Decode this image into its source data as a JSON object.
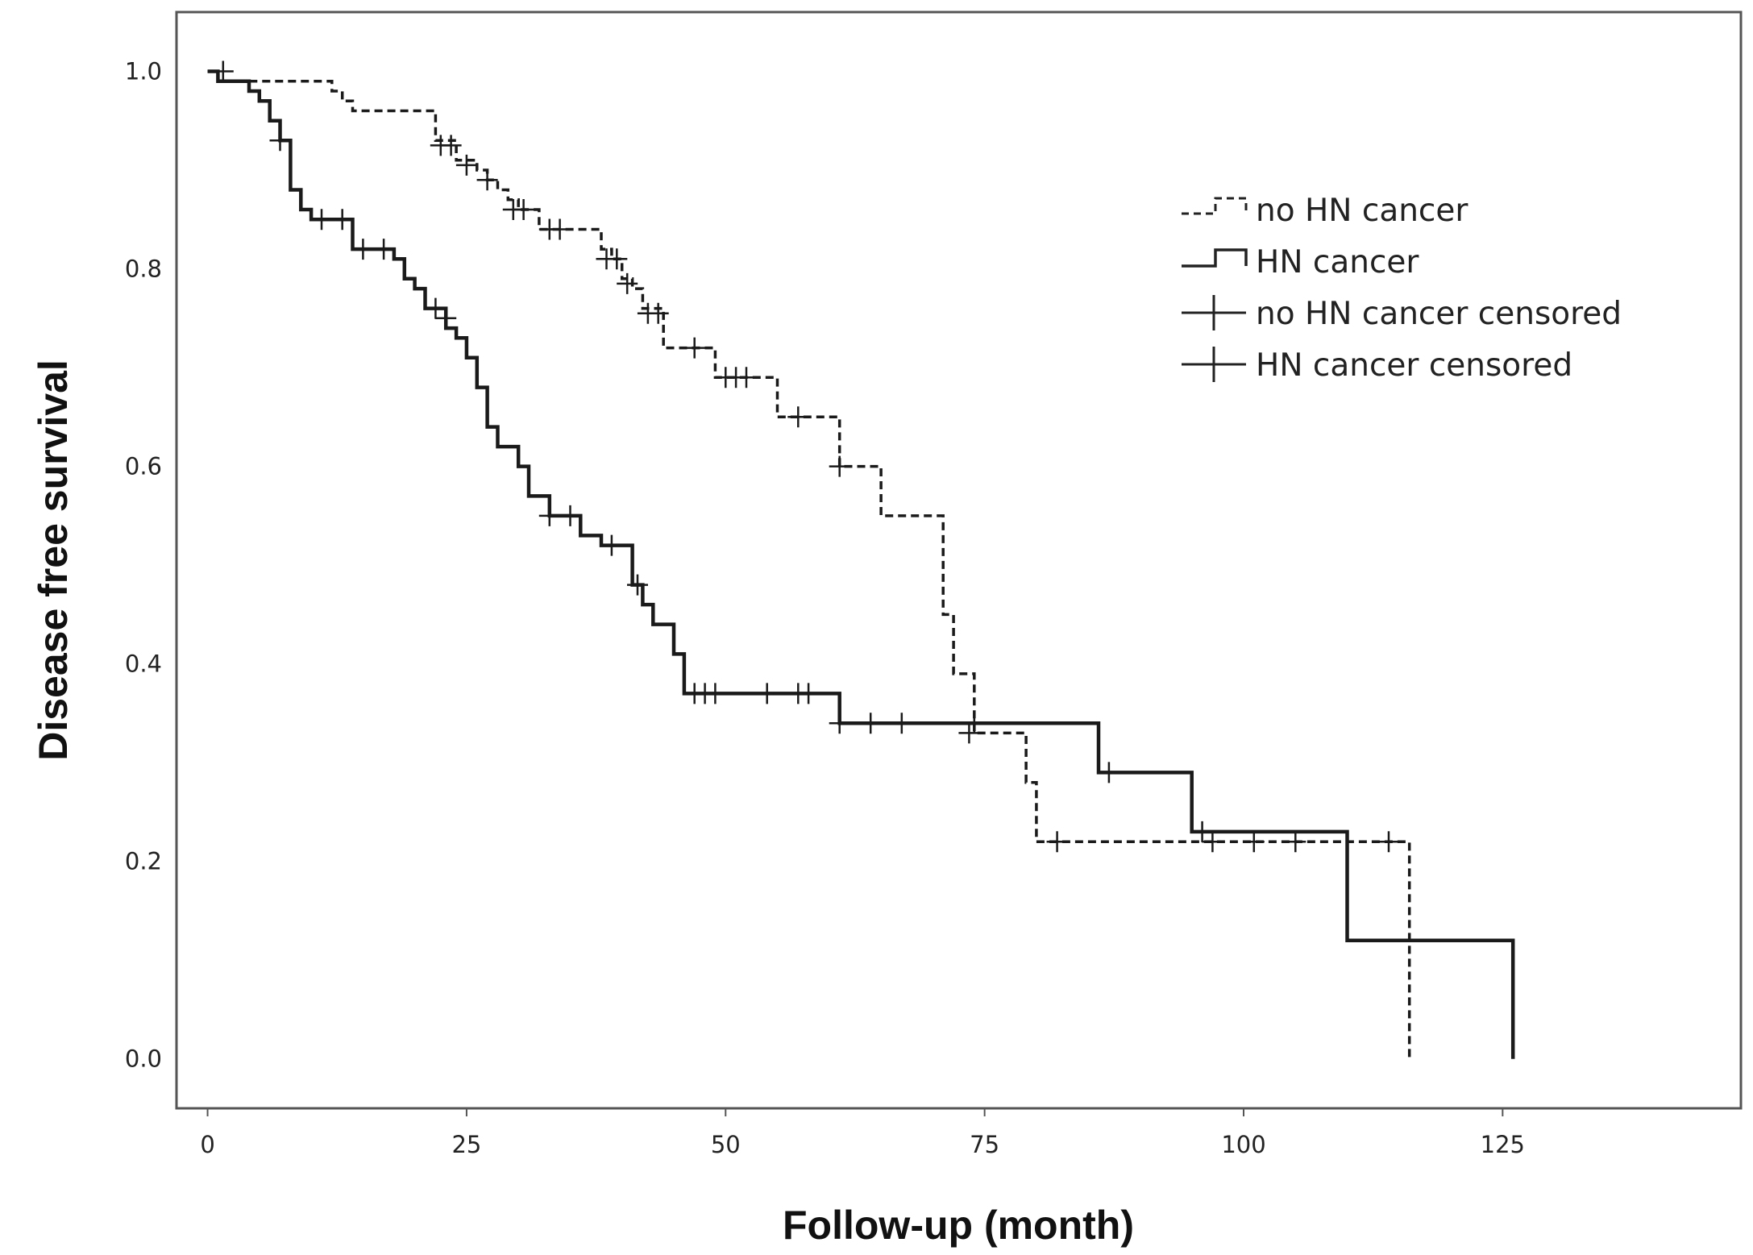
{
  "chart_data": {
    "type": "line",
    "subtype": "kaplan-meier",
    "title": "",
    "xlabel": "Follow-up (month)",
    "ylabel": "Disease free survival",
    "xlim": [
      -3,
      148
    ],
    "ylim": [
      -0.05,
      1.06
    ],
    "xticks": [
      0,
      25,
      50,
      75,
      100,
      125
    ],
    "xtick_labels": [
      "0",
      "25",
      "50",
      "75",
      "100",
      "125"
    ],
    "yticks": [
      0.0,
      0.2,
      0.4,
      0.6,
      0.8,
      1.0
    ],
    "ytick_labels": [
      "0.0",
      "0.2",
      "0.4",
      "0.6",
      "0.8",
      "1.0"
    ],
    "grid": false,
    "legend_position": "top-right",
    "series": [
      {
        "name": "no HN cancer",
        "style": "dashed",
        "steps": [
          [
            0,
            1.0
          ],
          [
            1,
            0.99
          ],
          [
            12,
            0.98
          ],
          [
            13,
            0.97
          ],
          [
            14,
            0.96
          ],
          [
            22,
            0.93
          ],
          [
            24,
            0.91
          ],
          [
            26,
            0.9
          ],
          [
            27,
            0.89
          ],
          [
            28,
            0.88
          ],
          [
            29,
            0.87
          ],
          [
            30,
            0.86
          ],
          [
            32,
            0.84
          ],
          [
            38,
            0.82
          ],
          [
            39,
            0.81
          ],
          [
            40,
            0.79
          ],
          [
            41,
            0.78
          ],
          [
            42,
            0.76
          ],
          [
            44,
            0.72
          ],
          [
            49,
            0.69
          ],
          [
            55,
            0.65
          ],
          [
            61,
            0.6
          ],
          [
            65,
            0.55
          ],
          [
            71,
            0.45
          ],
          [
            72,
            0.39
          ],
          [
            74,
            0.33
          ],
          [
            79,
            0.28
          ],
          [
            80,
            0.22
          ],
          [
            116,
            0.0
          ]
        ],
        "end_x": 116,
        "censored": [
          [
            1.5,
            1.0
          ],
          [
            22.5,
            0.925
          ],
          [
            23.5,
            0.925
          ],
          [
            25,
            0.905
          ],
          [
            27,
            0.89
          ],
          [
            29.5,
            0.86
          ],
          [
            30.5,
            0.86
          ],
          [
            33,
            0.84
          ],
          [
            34,
            0.84
          ],
          [
            38.5,
            0.81
          ],
          [
            39.5,
            0.81
          ],
          [
            40.5,
            0.785
          ],
          [
            42.5,
            0.755
          ],
          [
            43.5,
            0.755
          ],
          [
            47,
            0.72
          ],
          [
            50,
            0.69
          ],
          [
            51,
            0.69
          ],
          [
            52,
            0.69
          ],
          [
            57,
            0.65
          ],
          [
            61,
            0.6
          ],
          [
            73.5,
            0.33
          ],
          [
            82,
            0.22
          ],
          [
            97,
            0.22
          ],
          [
            101,
            0.22
          ],
          [
            105,
            0.22
          ],
          [
            114,
            0.22
          ]
        ]
      },
      {
        "name": "HN cancer",
        "style": "solid",
        "steps": [
          [
            0,
            1.0
          ],
          [
            1,
            0.99
          ],
          [
            4,
            0.98
          ],
          [
            5,
            0.97
          ],
          [
            6,
            0.95
          ],
          [
            7,
            0.93
          ],
          [
            8,
            0.88
          ],
          [
            9,
            0.86
          ],
          [
            10,
            0.85
          ],
          [
            14,
            0.82
          ],
          [
            18,
            0.81
          ],
          [
            19,
            0.79
          ],
          [
            20,
            0.78
          ],
          [
            21,
            0.76
          ],
          [
            23,
            0.74
          ],
          [
            24,
            0.73
          ],
          [
            25,
            0.71
          ],
          [
            26,
            0.68
          ],
          [
            27,
            0.64
          ],
          [
            28,
            0.62
          ],
          [
            30,
            0.6
          ],
          [
            31,
            0.57
          ],
          [
            33,
            0.55
          ],
          [
            36,
            0.53
          ],
          [
            38,
            0.52
          ],
          [
            41,
            0.48
          ],
          [
            42,
            0.46
          ],
          [
            43,
            0.44
          ],
          [
            45,
            0.41
          ],
          [
            46,
            0.37
          ],
          [
            61,
            0.34
          ],
          [
            86,
            0.29
          ],
          [
            95,
            0.23
          ],
          [
            110,
            0.12
          ],
          [
            126,
            0.0
          ]
        ],
        "end_x": 126,
        "censored": [
          [
            7,
            0.93
          ],
          [
            11,
            0.85
          ],
          [
            13,
            0.85
          ],
          [
            15,
            0.82
          ],
          [
            17,
            0.82
          ],
          [
            22,
            0.76
          ],
          [
            23,
            0.75
          ],
          [
            33,
            0.55
          ],
          [
            35,
            0.55
          ],
          [
            39,
            0.52
          ],
          [
            41.5,
            0.48
          ],
          [
            47,
            0.37
          ],
          [
            48,
            0.37
          ],
          [
            49,
            0.37
          ],
          [
            54,
            0.37
          ],
          [
            57,
            0.37
          ],
          [
            58,
            0.37
          ],
          [
            61,
            0.34
          ],
          [
            64,
            0.34
          ],
          [
            67,
            0.34
          ],
          [
            74,
            0.34
          ],
          [
            87,
            0.29
          ],
          [
            96,
            0.23
          ]
        ]
      }
    ],
    "legend": [
      "no HN cancer",
      "HN cancer",
      "no HN cancer censored",
      "HN cancer censored"
    ]
  }
}
